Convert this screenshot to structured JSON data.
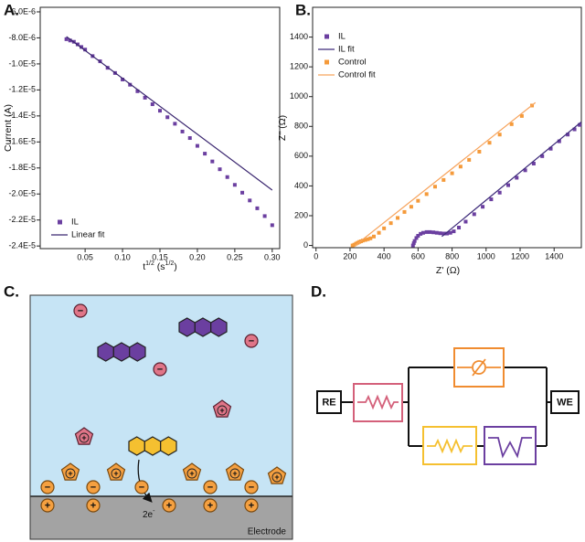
{
  "panel_labels": [
    "A.",
    "B.",
    "C.",
    "D."
  ],
  "chart_data": [
    {
      "type": "scatter",
      "x_label": [
        "t",
        "1/2",
        " (s",
        "1/2",
        ")"
      ],
      "y_label": "Current (A)",
      "xlim": [
        -0.01,
        0.31
      ],
      "ylim": [
        -2.42e-05,
        -5.65e-06
      ],
      "xticks": [
        {
          "value": 0.05,
          "label": "0.05"
        },
        {
          "value": 0.1,
          "label": "0.10"
        },
        {
          "value": 0.15,
          "label": "0.15"
        },
        {
          "value": 0.2,
          "label": "0.20"
        },
        {
          "value": 0.25,
          "label": "0.25"
        },
        {
          "value": 0.3,
          "label": "0.30"
        }
      ],
      "yticks": [
        {
          "value": -6e-06,
          "label": "-6.0E-6"
        },
        {
          "value": -8e-06,
          "label": "-8.0E-6"
        },
        {
          "value": -1e-05,
          "label": "-1.0E-5"
        },
        {
          "value": -1.2e-05,
          "label": "-1.2E-5"
        },
        {
          "value": -1.4e-05,
          "label": "-1.4E-5"
        },
        {
          "value": -1.6e-05,
          "label": "-1.6E-5"
        },
        {
          "value": -1.8e-05,
          "label": "-1.8E-5"
        },
        {
          "value": -2e-05,
          "label": "-2.0E-5"
        },
        {
          "value": -2.2e-05,
          "label": "-2.2E-5"
        },
        {
          "value": -2.4e-05,
          "label": "-2.4E-5"
        }
      ],
      "legend": "lower left",
      "series": [
        {
          "name": "IL",
          "color": "#6b3fa0",
          "style": "markers",
          "x": [
            0.025,
            0.03,
            0.035,
            0.04,
            0.045,
            0.05,
            0.06,
            0.07,
            0.08,
            0.09,
            0.1,
            0.11,
            0.12,
            0.13,
            0.14,
            0.15,
            0.16,
            0.17,
            0.18,
            0.19,
            0.2,
            0.21,
            0.22,
            0.23,
            0.24,
            0.25,
            0.26,
            0.27,
            0.28,
            0.29,
            0.3
          ],
          "values": [
            -8.1e-06,
            -8.2e-06,
            -8.3e-06,
            -8.5e-06,
            -8.7e-06,
            -8.9e-06,
            -9.4e-06,
            -9.8e-06,
            -1.03e-05,
            -1.07e-05,
            -1.12e-05,
            -1.16e-05,
            -1.21e-05,
            -1.26e-05,
            -1.31e-05,
            -1.36e-05,
            -1.41e-05,
            -1.46e-05,
            -1.52e-05,
            -1.57e-05,
            -1.63e-05,
            -1.69e-05,
            -1.75e-05,
            -1.81e-05,
            -1.87e-05,
            -1.93e-05,
            -1.99e-05,
            -2.05e-05,
            -2.11e-05,
            -2.17e-05,
            -2.24e-05
          ]
        },
        {
          "name": "Linear fit",
          "color": "#3b2770",
          "style": "line",
          "x": [
            0.025,
            0.3
          ],
          "values": [
            -7.9e-06,
            -1.97e-05
          ]
        }
      ]
    },
    {
      "type": "scatter",
      "x_label": "Z' (Ω)",
      "y_label": "Z'' (Ω)",
      "xlim": [
        -20,
        1560
      ],
      "ylim": [
        -15,
        1600
      ],
      "xticks": [
        0,
        200,
        400,
        600,
        800,
        1000,
        1200,
        1400
      ],
      "yticks": [
        0,
        200,
        400,
        600,
        800,
        1000,
        1200,
        1400
      ],
      "legend": "upper left",
      "series": [
        {
          "name": "IL",
          "color": "#6b3fa0",
          "style": "markers",
          "x": [
            570,
            575,
            580,
            590,
            600,
            615,
            630,
            650,
            670,
            690,
            710,
            730,
            750,
            770,
            790,
            810,
            840,
            880,
            930,
            980,
            1030,
            1080,
            1130,
            1180,
            1230,
            1280,
            1330,
            1380,
            1430,
            1480,
            1520,
            1550
          ],
          "values": [
            0,
            15,
            30,
            50,
            65,
            78,
            85,
            90,
            90,
            88,
            85,
            82,
            80,
            80,
            85,
            95,
            120,
            160,
            210,
            260,
            310,
            355,
            405,
            455,
            505,
            550,
            600,
            650,
            700,
            745,
            780,
            810
          ]
        },
        {
          "name": "IL fit",
          "color": "#3d2a7a",
          "style": "line",
          "x": [
            740,
            1560
          ],
          "values": [
            60,
            830
          ]
        },
        {
          "name": "Control",
          "color": "#f59a3a",
          "style": "markers",
          "x": [
            215,
            225,
            235,
            245,
            255,
            265,
            275,
            290,
            305,
            320,
            340,
            370,
            400,
            440,
            480,
            520,
            560,
            600,
            650,
            700,
            750,
            800,
            850,
            900,
            960,
            1020,
            1080,
            1150,
            1210,
            1270
          ],
          "values": [
            0,
            5,
            12,
            18,
            24,
            28,
            33,
            37,
            42,
            48,
            60,
            85,
            115,
            150,
            185,
            225,
            260,
            300,
            345,
            395,
            440,
            485,
            530,
            575,
            630,
            690,
            745,
            815,
            870,
            940
          ]
        },
        {
          "name": "Control fit",
          "color": "#f7a35c",
          "style": "line",
          "x": [
            230,
            1290
          ],
          "values": [
            0,
            960
          ]
        }
      ]
    }
  ],
  "panel_c": {
    "electrode_label": "Electrode",
    "electron_label": "2e",
    "electron_charge": "-",
    "anion_sign": "−",
    "cation_sign": "+"
  },
  "panel_d": {
    "reference_electrode": "RE",
    "working_electrode": "WE"
  }
}
